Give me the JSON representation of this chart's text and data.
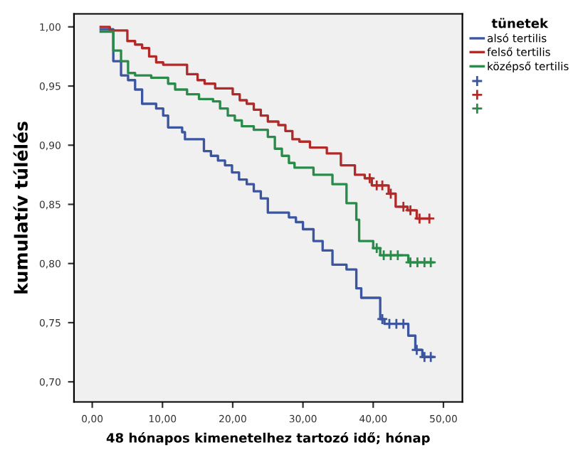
{
  "chart_data": {
    "type": "step",
    "xlabel": "48 hónapos kimenetelhez tartozó idő; hónap",
    "ylabel": "kumulatív túlélés",
    "legend_title": "tünetek",
    "legend": "right",
    "grid": false,
    "xlim": [
      -2.6,
      52.7
    ],
    "ylim": [
      0.683,
      1.011
    ],
    "xticks": [
      {
        "value": 0,
        "label": "0,00"
      },
      {
        "value": 10,
        "label": "10,00"
      },
      {
        "value": 20,
        "label": "20,00"
      },
      {
        "value": 30,
        "label": "30,00"
      },
      {
        "value": 40,
        "label": "40,00"
      },
      {
        "value": 50,
        "label": "50,00"
      }
    ],
    "yticks": [
      {
        "value": 0.7,
        "label": "0,70"
      },
      {
        "value": 0.75,
        "label": "0,75"
      },
      {
        "value": 0.8,
        "label": "0,80"
      },
      {
        "value": 0.85,
        "label": "0,85"
      },
      {
        "value": 0.9,
        "label": "0,90"
      },
      {
        "value": 0.95,
        "label": "0,95"
      },
      {
        "value": 1.0,
        "label": "1,00"
      }
    ],
    "series": [
      {
        "name": "alsó tertilis",
        "color": "#3b55a0",
        "x": [
          1.2,
          3.0,
          4.1,
          5.1,
          6.1,
          7.1,
          9.1,
          10.1,
          10.8,
          12.8,
          13.2,
          15.9,
          16.9,
          17.9,
          18.9,
          19.9,
          20.9,
          22,
          23,
          24,
          25,
          28,
          29,
          30,
          31.5,
          32.8,
          34.2,
          36.2,
          37.6,
          38.3,
          41,
          41.6,
          45,
          46,
          47,
          48.5
        ],
        "values": [
          0.998,
          0.971,
          0.959,
          0.955,
          0.947,
          0.935,
          0.931,
          0.925,
          0.915,
          0.911,
          0.905,
          0.895,
          0.891,
          0.887,
          0.883,
          0.877,
          0.871,
          0.867,
          0.861,
          0.855,
          0.843,
          0.839,
          0.835,
          0.829,
          0.819,
          0.811,
          0.799,
          0.795,
          0.779,
          0.771,
          0.753,
          0.749,
          0.739,
          0.727,
          0.721,
          0.721
        ]
      },
      {
        "name": "felső tertilis",
        "color": "#b02a2a",
        "x": [
          1.2,
          2.5,
          5,
          6.1,
          7.1,
          8.1,
          9.1,
          10.1,
          13.5,
          15,
          16,
          17.5,
          20,
          21,
          22,
          23,
          24,
          25,
          26.5,
          27.5,
          28.5,
          29.5,
          31,
          33.4,
          35.4,
          37.4,
          38.8,
          39.8,
          42.2,
          43.2,
          44.9,
          46.2,
          48
        ],
        "values": [
          1.0,
          0.997,
          0.988,
          0.985,
          0.982,
          0.975,
          0.97,
          0.968,
          0.96,
          0.955,
          0.952,
          0.948,
          0.943,
          0.938,
          0.935,
          0.93,
          0.925,
          0.92,
          0.917,
          0.912,
          0.905,
          0.903,
          0.898,
          0.893,
          0.883,
          0.875,
          0.872,
          0.866,
          0.859,
          0.848,
          0.845,
          0.838,
          0.838
        ]
      },
      {
        "name": "középső tertilis",
        "color": "#2a8a4a",
        "x": [
          1.2,
          3.0,
          4.1,
          5.1,
          6.1,
          8.4,
          10.8,
          11.8,
          13.5,
          15.2,
          17.2,
          18.2,
          19.3,
          20.3,
          21.3,
          23,
          25,
          26,
          27,
          28,
          28.8,
          31.5,
          34.2,
          36.2,
          37.6,
          38,
          40,
          41,
          45,
          48.5
        ],
        "values": [
          0.996,
          0.98,
          0.971,
          0.961,
          0.959,
          0.957,
          0.952,
          0.947,
          0.943,
          0.939,
          0.937,
          0.931,
          0.925,
          0.921,
          0.916,
          0.913,
          0.907,
          0.897,
          0.891,
          0.885,
          0.881,
          0.875,
          0.867,
          0.851,
          0.837,
          0.819,
          0.813,
          0.807,
          0.801,
          0.801
        ]
      },
      {
        "type": "scatter",
        "marker": "cross",
        "color": "#3b55a0",
        "x": [
          41.3,
          42.3,
          43.3,
          44.3,
          46.2,
          47.3,
          48.2
        ],
        "values": [
          0.753,
          0.749,
          0.749,
          0.749,
          0.727,
          0.721,
          0.721
        ]
      },
      {
        "type": "scatter",
        "marker": "cross",
        "color": "#b02a2a",
        "x": [
          39.5,
          40.5,
          41.3,
          42.5,
          44.3,
          45.3,
          46.6,
          48.0
        ],
        "values": [
          0.872,
          0.866,
          0.866,
          0.859,
          0.848,
          0.845,
          0.838,
          0.838
        ]
      },
      {
        "type": "scatter",
        "marker": "cross",
        "color": "#2a8a4a",
        "x": [
          40.5,
          41.5,
          42.5,
          43.5,
          45.3,
          46.3,
          47.3,
          48.2
        ],
        "values": [
          0.813,
          0.807,
          0.807,
          0.807,
          0.801,
          0.801,
          0.801,
          0.801
        ]
      }
    ]
  }
}
